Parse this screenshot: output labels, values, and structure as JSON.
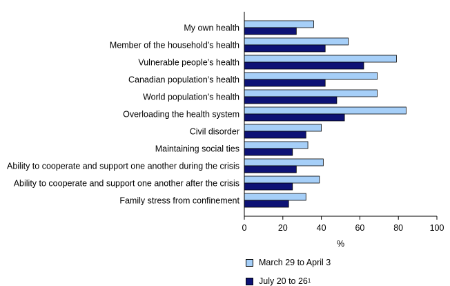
{
  "chart_data": {
    "type": "bar",
    "orientation": "horizontal",
    "categories": [
      "My own health",
      "Member of the household’s health",
      "Vulnerable people’s health",
      "Canadian population’s health",
      "World population’s health",
      "Overloading the health system",
      "Civil disorder",
      "Maintaining social ties",
      "Ability to cooperate and support one another during the crisis",
      "Ability to cooperate and support one another after the crisis",
      "Family stress from confinement"
    ],
    "series": [
      {
        "name": "March 29 to April 3",
        "color": "#a6cff8",
        "values": [
          36,
          54,
          79,
          69,
          69,
          84,
          40,
          33,
          41,
          39,
          32
        ]
      },
      {
        "name": "July 20 to 26",
        "footnote": "1",
        "color": "#0d1275",
        "values": [
          27,
          42,
          62,
          42,
          48,
          52,
          32,
          25,
          27,
          25,
          23
        ]
      }
    ],
    "xlabel": "%",
    "xlim": [
      0,
      100
    ],
    "xticks": [
      0,
      20,
      40,
      60,
      80,
      100
    ],
    "grid": false,
    "legend_position": "bottom"
  }
}
